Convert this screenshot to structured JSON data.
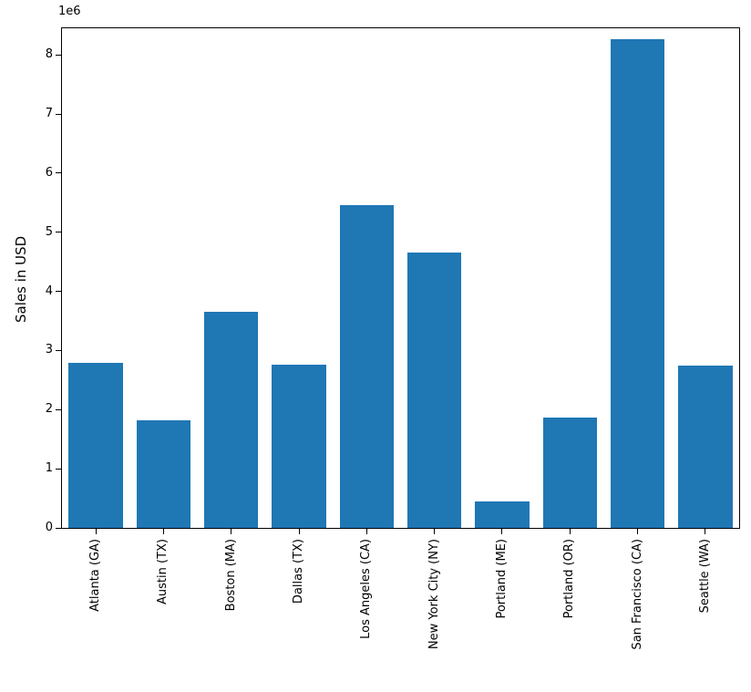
{
  "chart_data": {
    "type": "bar",
    "title": "",
    "xlabel": "",
    "ylabel": "Sales in USD",
    "offset_label": "1e6",
    "categories": [
      "Atlanta (GA)",
      "Austin (TX)",
      "Boston (MA)",
      "Dallas (TX)",
      "Los Angeles (CA)",
      "New York City (NY)",
      "Portland (ME)",
      "Portland (OR)",
      "San Francisco (CA)",
      "Seattle (WA)"
    ],
    "values": [
      2795499,
      1819582,
      3661642,
      2767975,
      5452571,
      4664317,
      449758,
      1870732,
      8262204,
      2747755
    ],
    "values_unit": "USD",
    "yticks": [
      0,
      1,
      2,
      3,
      4,
      5,
      6,
      7,
      8
    ],
    "ytick_scale": 1000000,
    "ylim": [
      0,
      8450000
    ],
    "bar_width_fraction": 0.8,
    "bar_color": "#1f77b4",
    "background_color": "#ffffff",
    "text_color": "#000000",
    "grid": false,
    "legend": null
  }
}
